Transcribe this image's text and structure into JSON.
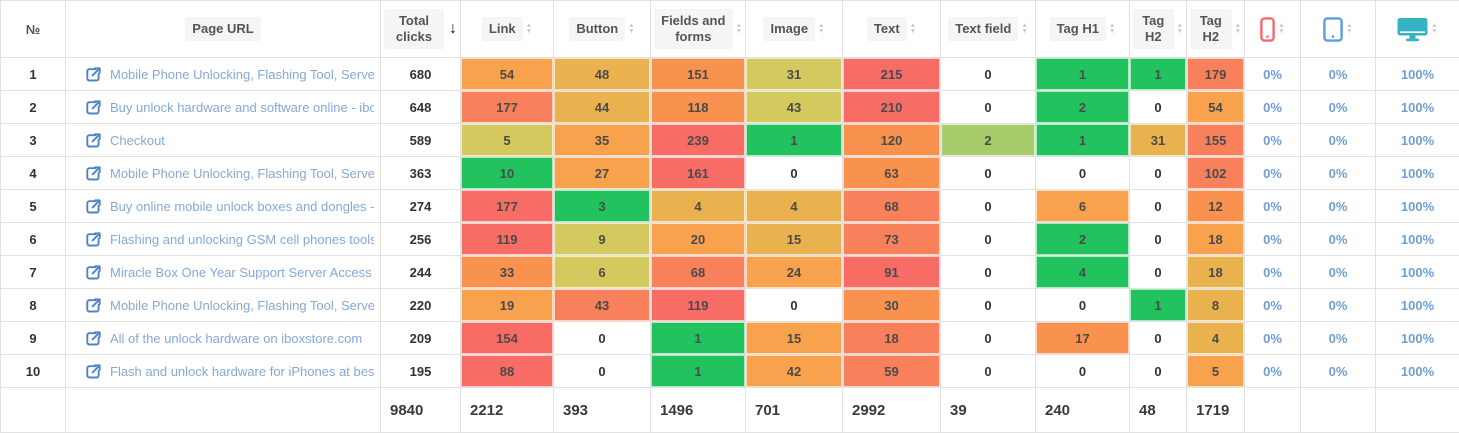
{
  "colors": {
    "url_link": "#85a9d8",
    "external_link_icon": "#4d84c4",
    "percent_text": "#6f9ed6",
    "heat_green": "#22c35e",
    "heat_light_green": "#a6cc6c",
    "heat_olive": "#d3c95f",
    "heat_amber": "#e9b24f",
    "heat_orange": "#f9a24d",
    "heat_salmon_orange": "#f9914f",
    "heat_salmon": "#f8815c",
    "heat_red": "#f76d66"
  },
  "table": {
    "header": {
      "num": "№",
      "url": "Page URL",
      "total": "Total clicks",
      "total_sort": "descending",
      "metrics": [
        {
          "key": "link",
          "label": "Link"
        },
        {
          "key": "button",
          "label": "Button"
        },
        {
          "key": "fields-and-forms",
          "label": "Fields and forms"
        },
        {
          "key": "image",
          "label": "Image"
        },
        {
          "key": "text",
          "label": "Text"
        },
        {
          "key": "text-field",
          "label": "Text field"
        },
        {
          "key": "tag-h1",
          "label": "Tag H1"
        },
        {
          "key": "tag-h2",
          "label": "Tag H2"
        },
        {
          "key": "tag-h2-2",
          "label": "Tag H2"
        }
      ],
      "devices": [
        {
          "key": "mobile",
          "color": "#f5696e"
        },
        {
          "key": "tablet",
          "color": "#5e9de0"
        },
        {
          "key": "desktop",
          "color": "#34b3c4"
        }
      ]
    },
    "rows": [
      {
        "num": "1",
        "url": "Mobile Phone Unlocking, Flashing Tool, Server C...",
        "total": "680",
        "metrics": [
          {
            "v": "54",
            "bg": "#f9a24d"
          },
          {
            "v": "48",
            "bg": "#e9b24f"
          },
          {
            "v": "151",
            "bg": "#f9914f"
          },
          {
            "v": "31",
            "bg": "#d3c95f"
          },
          {
            "v": "215",
            "bg": "#f76d66"
          },
          {
            "v": "0",
            "bg": "#ffffff"
          },
          {
            "v": "1",
            "bg": "#22c35e"
          },
          {
            "v": "1",
            "bg": "#22c35e"
          },
          {
            "v": "179",
            "bg": "#f8815c"
          }
        ],
        "devices": [
          "0%",
          "0%",
          "100%"
        ]
      },
      {
        "num": "2",
        "url": "Buy unlock hardware and software online - ibox...",
        "total": "648",
        "metrics": [
          {
            "v": "177",
            "bg": "#f8815c"
          },
          {
            "v": "44",
            "bg": "#e9b24f"
          },
          {
            "v": "118",
            "bg": "#f9914f"
          },
          {
            "v": "43",
            "bg": "#d3c95f"
          },
          {
            "v": "210",
            "bg": "#f76d66"
          },
          {
            "v": "0",
            "bg": "#ffffff"
          },
          {
            "v": "2",
            "bg": "#22c35e"
          },
          {
            "v": "0",
            "bg": "#ffffff"
          },
          {
            "v": "54",
            "bg": "#f9a24d"
          }
        ],
        "devices": [
          "0%",
          "0%",
          "100%"
        ]
      },
      {
        "num": "3",
        "url": "Checkout",
        "total": "589",
        "metrics": [
          {
            "v": "5",
            "bg": "#d3c95f"
          },
          {
            "v": "35",
            "bg": "#f9a24d"
          },
          {
            "v": "239",
            "bg": "#f76d66"
          },
          {
            "v": "1",
            "bg": "#22c35e"
          },
          {
            "v": "120",
            "bg": "#f9914f"
          },
          {
            "v": "2",
            "bg": "#a6cc6c"
          },
          {
            "v": "1",
            "bg": "#22c35e"
          },
          {
            "v": "31",
            "bg": "#e9b24f"
          },
          {
            "v": "155",
            "bg": "#f8815c"
          }
        ],
        "devices": [
          "0%",
          "0%",
          "100%"
        ]
      },
      {
        "num": "4",
        "url": "Mobile Phone Unlocking, Flashing Tool, Server C...",
        "total": "363",
        "metrics": [
          {
            "v": "10",
            "bg": "#22c35e"
          },
          {
            "v": "27",
            "bg": "#f9a24d"
          },
          {
            "v": "161",
            "bg": "#f76d66"
          },
          {
            "v": "0",
            "bg": "#ffffff"
          },
          {
            "v": "63",
            "bg": "#f9914f"
          },
          {
            "v": "0",
            "bg": "#ffffff"
          },
          {
            "v": "0",
            "bg": "#ffffff"
          },
          {
            "v": "0",
            "bg": "#ffffff"
          },
          {
            "v": "102",
            "bg": "#f8815c"
          }
        ],
        "devices": [
          "0%",
          "0%",
          "100%"
        ]
      },
      {
        "num": "5",
        "url": "Buy online mobile unlock boxes and dongles - i...",
        "total": "274",
        "metrics": [
          {
            "v": "177",
            "bg": "#f76d66"
          },
          {
            "v": "3",
            "bg": "#22c35e"
          },
          {
            "v": "4",
            "bg": "#e9b24f"
          },
          {
            "v": "4",
            "bg": "#e9b24f"
          },
          {
            "v": "68",
            "bg": "#f8815c"
          },
          {
            "v": "0",
            "bg": "#ffffff"
          },
          {
            "v": "6",
            "bg": "#f9a24d"
          },
          {
            "v": "0",
            "bg": "#ffffff"
          },
          {
            "v": "12",
            "bg": "#f9914f"
          }
        ],
        "devices": [
          "0%",
          "0%",
          "100%"
        ]
      },
      {
        "num": "6",
        "url": "Flashing and unlocking GSM cell phones tools - i...",
        "total": "256",
        "metrics": [
          {
            "v": "119",
            "bg": "#f76d66"
          },
          {
            "v": "9",
            "bg": "#d3c95f"
          },
          {
            "v": "20",
            "bg": "#f9a24d"
          },
          {
            "v": "15",
            "bg": "#e9b24f"
          },
          {
            "v": "73",
            "bg": "#f8815c"
          },
          {
            "v": "0",
            "bg": "#ffffff"
          },
          {
            "v": "2",
            "bg": "#22c35e"
          },
          {
            "v": "0",
            "bg": "#ffffff"
          },
          {
            "v": "18",
            "bg": "#f9a24d"
          }
        ],
        "devices": [
          "0%",
          "0%",
          "100%"
        ]
      },
      {
        "num": "7",
        "url": "Miracle Box One Year Support Server Access Act...",
        "total": "244",
        "metrics": [
          {
            "v": "33",
            "bg": "#f9914f"
          },
          {
            "v": "6",
            "bg": "#d3c95f"
          },
          {
            "v": "68",
            "bg": "#f8815c"
          },
          {
            "v": "24",
            "bg": "#f9a24d"
          },
          {
            "v": "91",
            "bg": "#f76d66"
          },
          {
            "v": "0",
            "bg": "#ffffff"
          },
          {
            "v": "4",
            "bg": "#22c35e"
          },
          {
            "v": "0",
            "bg": "#ffffff"
          },
          {
            "v": "18",
            "bg": "#e9b24f"
          }
        ],
        "devices": [
          "0%",
          "0%",
          "100%"
        ]
      },
      {
        "num": "8",
        "url": "Mobile Phone Unlocking, Flashing Tool, Server C...",
        "total": "220",
        "metrics": [
          {
            "v": "19",
            "bg": "#f9a24d"
          },
          {
            "v": "43",
            "bg": "#f8815c"
          },
          {
            "v": "119",
            "bg": "#f76d66"
          },
          {
            "v": "0",
            "bg": "#ffffff"
          },
          {
            "v": "30",
            "bg": "#f9914f"
          },
          {
            "v": "0",
            "bg": "#ffffff"
          },
          {
            "v": "0",
            "bg": "#ffffff"
          },
          {
            "v": "1",
            "bg": "#22c35e"
          },
          {
            "v": "8",
            "bg": "#e9b24f"
          }
        ],
        "devices": [
          "0%",
          "0%",
          "100%"
        ]
      },
      {
        "num": "9",
        "url": "All of the unlock hardware on iboxstore.com",
        "total": "209",
        "metrics": [
          {
            "v": "154",
            "bg": "#f76d66"
          },
          {
            "v": "0",
            "bg": "#ffffff"
          },
          {
            "v": "1",
            "bg": "#22c35e"
          },
          {
            "v": "15",
            "bg": "#f9a24d"
          },
          {
            "v": "18",
            "bg": "#f8815c"
          },
          {
            "v": "0",
            "bg": "#ffffff"
          },
          {
            "v": "17",
            "bg": "#f9914f"
          },
          {
            "v": "0",
            "bg": "#ffffff"
          },
          {
            "v": "4",
            "bg": "#e9b24f"
          }
        ],
        "devices": [
          "0%",
          "0%",
          "100%"
        ]
      },
      {
        "num": "10",
        "url": "Flash and unlock hardware for iPhones at best ...",
        "total": "195",
        "metrics": [
          {
            "v": "88",
            "bg": "#f76d66"
          },
          {
            "v": "0",
            "bg": "#ffffff"
          },
          {
            "v": "1",
            "bg": "#22c35e"
          },
          {
            "v": "42",
            "bg": "#f9a24d"
          },
          {
            "v": "59",
            "bg": "#f8815c"
          },
          {
            "v": "0",
            "bg": "#ffffff"
          },
          {
            "v": "0",
            "bg": "#ffffff"
          },
          {
            "v": "0",
            "bg": "#ffffff"
          },
          {
            "v": "5",
            "bg": "#f9a24d"
          }
        ],
        "devices": [
          "0%",
          "0%",
          "100%"
        ]
      }
    ],
    "totals": {
      "total": "9840",
      "metrics": [
        "2212",
        "393",
        "1496",
        "701",
        "2992",
        "39",
        "240",
        "48",
        "1719"
      ],
      "devices": [
        "",
        "",
        ""
      ]
    }
  }
}
